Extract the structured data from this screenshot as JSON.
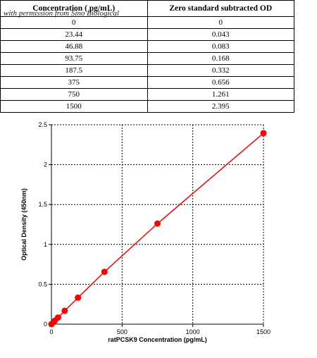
{
  "table": {
    "headers": [
      "Concentration ( pg/mL)",
      "Zero standard subtracted OD"
    ],
    "watermark": "with permission from Sino Biological",
    "rows": [
      [
        "0",
        "0"
      ],
      [
        "23.44",
        "0.043"
      ],
      [
        "46.88",
        "0.083"
      ],
      [
        "93.75",
        "0.168"
      ],
      [
        "187.5",
        "0.332"
      ],
      [
        "375",
        "0.656"
      ],
      [
        "750",
        "1.261"
      ],
      [
        "1500",
        "2.395"
      ]
    ]
  },
  "chart_data": {
    "type": "line",
    "x": [
      0,
      23.44,
      46.88,
      93.75,
      187.5,
      375,
      750,
      1500
    ],
    "series": [
      {
        "name": "",
        "values": [
          0,
          0.043,
          0.083,
          0.168,
          0.332,
          0.656,
          1.261,
          2.395
        ],
        "color": "#ff0000"
      }
    ],
    "xlabel": "ratPCSK9 Concentration (pg/mL)",
    "ylabel": "Optical Density (450nm)",
    "xlim": [
      0,
      1500
    ],
    "ylim": [
      0,
      2.5
    ],
    "xticks": [
      0,
      500,
      1000,
      1500
    ],
    "xtick_labels": [
      "0",
      "500",
      "1000",
      "1500"
    ],
    "yticks": [
      0,
      0.5,
      1,
      1.5,
      2,
      2.5
    ],
    "ytick_labels": [
      "0",
      "0.5",
      "1",
      "1.5",
      "2",
      "2.5"
    ],
    "grid": true,
    "grid_style": "dotted"
  }
}
